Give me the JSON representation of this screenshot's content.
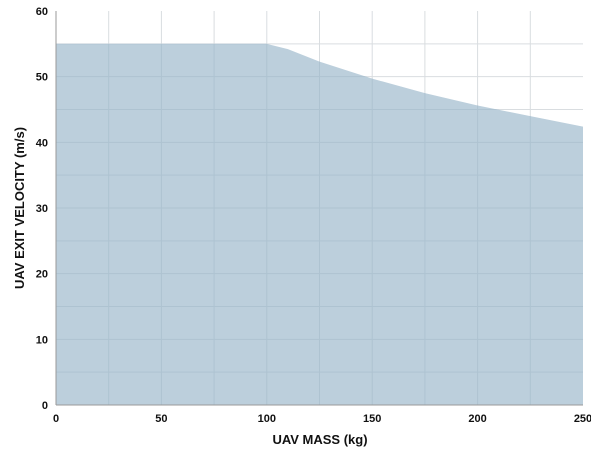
{
  "chart_data": {
    "type": "area",
    "title": "",
    "xlabel": "UAV MASS (kg)",
    "ylabel": "UAV EXIT VELOCITY (m/s)",
    "xlim": [
      0,
      250
    ],
    "ylim": [
      0,
      60
    ],
    "x_ticks": [
      0,
      50,
      100,
      150,
      200,
      250
    ],
    "y_ticks": [
      0,
      10,
      20,
      30,
      40,
      50,
      60
    ],
    "x_tick_labels": [
      "0",
      "50",
      "100",
      "150",
      "200",
      "250"
    ],
    "y_tick_labels": [
      "0",
      "10",
      "20",
      "30",
      "40",
      "50",
      "60"
    ],
    "grid": true,
    "legend": "none",
    "series": [
      {
        "x": [
          0,
          100,
          110,
          125,
          150,
          175,
          200,
          225,
          250
        ],
        "values": [
          55,
          55,
          54.2,
          52.3,
          49.7,
          47.5,
          45.6,
          44.0,
          42.4
        ],
        "color": "#bccfdc"
      }
    ]
  },
  "colors": {
    "fill": "#bccfdc",
    "grid": "#d9dde0",
    "grid_over_fill": "#aec3d1",
    "axis": "#9a9a9a"
  }
}
